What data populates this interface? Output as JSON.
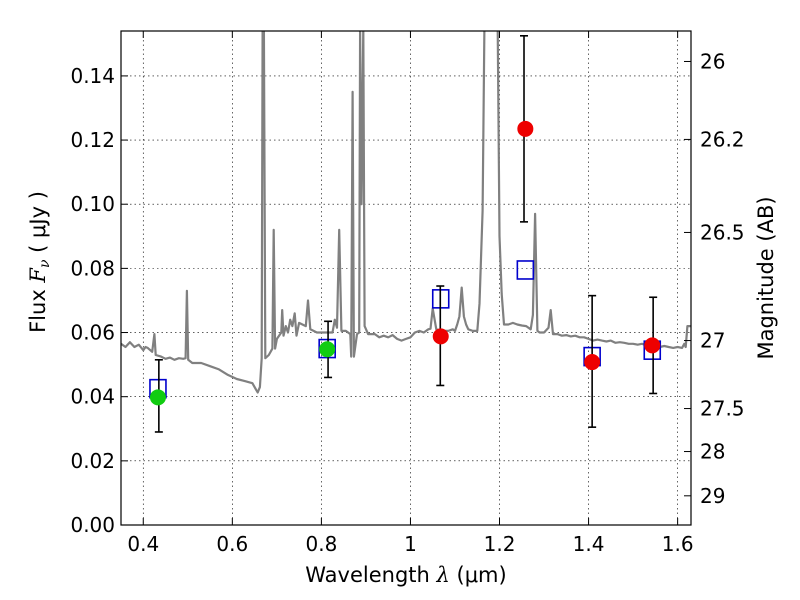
{
  "chart_data": {
    "type": "scatter",
    "xlabel": {
      "prefix": "Wavelength  ",
      "symbol": "λ",
      "units": " (μm)"
    },
    "ylabel": {
      "prefix": "Flux  ",
      "symbol": "F",
      "subscript": "ν",
      "units": "  ( μJy )"
    },
    "y2label": "Magnitude (AB)",
    "xlim": [
      0.35,
      1.63
    ],
    "ylim": [
      0.0,
      0.154
    ],
    "xticks": [
      0.4,
      0.6,
      0.8,
      1.0,
      1.2,
      1.4,
      1.6
    ],
    "xtick_labels": [
      "0.4",
      "0.6",
      "0.8",
      "1",
      "1.2",
      "1.4",
      "1.6"
    ],
    "yticks": [
      0.0,
      0.02,
      0.04,
      0.06,
      0.08,
      0.1,
      0.12,
      0.14
    ],
    "ytick_labels": [
      "0.00",
      "0.02",
      "0.04",
      "0.06",
      "0.08",
      "0.10",
      "0.12",
      "0.14"
    ],
    "y2ticks": [
      {
        "label": "26",
        "flux": 0.1445
      },
      {
        "label": "26.2",
        "flux": 0.1202
      },
      {
        "label": "26.5",
        "flux": 0.0912
      },
      {
        "label": "27",
        "flux": 0.0575
      },
      {
        "label": "27.5",
        "flux": 0.0363
      },
      {
        "label": "28",
        "flux": 0.0229
      },
      {
        "label": "29",
        "flux": 0.0091
      }
    ],
    "grid": true,
    "series": [
      {
        "marker": "line",
        "color": "#808080",
        "points": [
          [
            0.35,
            0.0565
          ],
          [
            0.36,
            0.0555
          ],
          [
            0.37,
            0.057
          ],
          [
            0.38,
            0.0555
          ],
          [
            0.39,
            0.0562
          ],
          [
            0.4,
            0.0545
          ],
          [
            0.405,
            0.0555
          ],
          [
            0.41,
            0.0552
          ],
          [
            0.42,
            0.054
          ],
          [
            0.425,
            0.0595
          ],
          [
            0.428,
            0.053
          ],
          [
            0.44,
            0.0525
          ],
          [
            0.45,
            0.0518
          ],
          [
            0.46,
            0.0522
          ],
          [
            0.47,
            0.0515
          ],
          [
            0.48,
            0.052
          ],
          [
            0.49,
            0.0518
          ],
          [
            0.495,
            0.052
          ],
          [
            0.498,
            0.073
          ],
          [
            0.501,
            0.0515
          ],
          [
            0.51,
            0.0505
          ],
          [
            0.53,
            0.0505
          ],
          [
            0.55,
            0.0495
          ],
          [
            0.57,
            0.0485
          ],
          [
            0.59,
            0.0468
          ],
          [
            0.61,
            0.0455
          ],
          [
            0.63,
            0.0448
          ],
          [
            0.645,
            0.0442
          ],
          [
            0.652,
            0.0425
          ],
          [
            0.657,
            0.0413
          ],
          [
            0.662,
            0.043
          ],
          [
            0.666,
            0.052
          ],
          [
            0.668,
            0.155
          ],
          [
            0.671,
            0.155
          ],
          [
            0.674,
            0.052
          ],
          [
            0.682,
            0.053
          ],
          [
            0.69,
            0.055
          ],
          [
            0.693,
            0.092
          ],
          [
            0.696,
            0.055
          ],
          [
            0.7,
            0.058
          ],
          [
            0.71,
            0.06
          ],
          [
            0.712,
            0.067
          ],
          [
            0.715,
            0.059
          ],
          [
            0.72,
            0.062
          ],
          [
            0.725,
            0.06
          ],
          [
            0.73,
            0.064
          ],
          [
            0.735,
            0.062
          ],
          [
            0.74,
            0.066
          ],
          [
            0.744,
            0.059
          ],
          [
            0.75,
            0.063
          ],
          [
            0.765,
            0.062
          ],
          [
            0.77,
            0.07
          ],
          [
            0.775,
            0.061
          ],
          [
            0.79,
            0.06
          ],
          [
            0.81,
            0.06
          ],
          [
            0.825,
            0.06
          ],
          [
            0.83,
            0.064
          ],
          [
            0.835,
            0.0615
          ],
          [
            0.84,
            0.092
          ],
          [
            0.845,
            0.0605
          ],
          [
            0.855,
            0.0605
          ],
          [
            0.865,
            0.0595
          ],
          [
            0.867,
            0.0525
          ],
          [
            0.87,
            0.135
          ],
          [
            0.873,
            0.0525
          ],
          [
            0.88,
            0.0595
          ],
          [
            0.885,
            0.06
          ],
          [
            0.887,
            0.155
          ],
          [
            0.89,
            0.1
          ],
          [
            0.894,
            0.155
          ],
          [
            0.897,
            0.062
          ],
          [
            0.905,
            0.0595
          ],
          [
            0.92,
            0.0595
          ],
          [
            0.93,
            0.0585
          ],
          [
            0.94,
            0.059
          ],
          [
            0.95,
            0.0585
          ],
          [
            0.96,
            0.0592
          ],
          [
            0.97,
            0.058
          ],
          [
            0.98,
            0.0575
          ],
          [
            0.99,
            0.058
          ],
          [
            1.0,
            0.0585
          ],
          [
            1.01,
            0.06
          ],
          [
            1.02,
            0.0605
          ],
          [
            1.03,
            0.06
          ],
          [
            1.04,
            0.061
          ],
          [
            1.045,
            0.0612
          ],
          [
            1.05,
            0.0675
          ],
          [
            1.058,
            0.061
          ],
          [
            1.07,
            0.0605
          ],
          [
            1.085,
            0.0605
          ],
          [
            1.095,
            0.061
          ],
          [
            1.1,
            0.0605
          ],
          [
            1.105,
            0.0625
          ],
          [
            1.11,
            0.065
          ],
          [
            1.115,
            0.074
          ],
          [
            1.12,
            0.065
          ],
          [
            1.125,
            0.0625
          ],
          [
            1.13,
            0.061
          ],
          [
            1.14,
            0.0605
          ],
          [
            1.15,
            0.0605
          ],
          [
            1.155,
            0.069
          ],
          [
            1.162,
            0.098
          ],
          [
            1.166,
            0.155
          ],
          [
            1.196,
            0.155
          ],
          [
            1.2,
            0.09
          ],
          [
            1.205,
            0.072
          ],
          [
            1.21,
            0.0625
          ],
          [
            1.22,
            0.0625
          ],
          [
            1.23,
            0.063
          ],
          [
            1.24,
            0.0625
          ],
          [
            1.25,
            0.0622
          ],
          [
            1.26,
            0.062
          ],
          [
            1.27,
            0.061
          ],
          [
            1.275,
            0.0655
          ],
          [
            1.28,
            0.097
          ],
          [
            1.285,
            0.0605
          ],
          [
            1.29,
            0.06
          ],
          [
            1.3,
            0.06
          ],
          [
            1.31,
            0.0615
          ],
          [
            1.315,
            0.067
          ],
          [
            1.32,
            0.0595
          ],
          [
            1.33,
            0.0595
          ],
          [
            1.34,
            0.059
          ],
          [
            1.35,
            0.0592
          ],
          [
            1.36,
            0.0588
          ],
          [
            1.37,
            0.059
          ],
          [
            1.38,
            0.0585
          ],
          [
            1.39,
            0.0585
          ],
          [
            1.4,
            0.058
          ],
          [
            1.41,
            0.0575
          ],
          [
            1.42,
            0.0578
          ],
          [
            1.43,
            0.0575
          ],
          [
            1.44,
            0.0572
          ],
          [
            1.45,
            0.0575
          ],
          [
            1.46,
            0.0568
          ],
          [
            1.47,
            0.057
          ],
          [
            1.48,
            0.0568
          ],
          [
            1.49,
            0.0565
          ],
          [
            1.5,
            0.0565
          ],
          [
            1.51,
            0.0562
          ],
          [
            1.52,
            0.0565
          ],
          [
            1.53,
            0.056
          ],
          [
            1.54,
            0.0562
          ],
          [
            1.55,
            0.0558
          ],
          [
            1.56,
            0.0555
          ],
          [
            1.57,
            0.0558
          ],
          [
            1.58,
            0.0555
          ],
          [
            1.59,
            0.0552
          ],
          [
            1.6,
            0.0555
          ],
          [
            1.61,
            0.0552
          ],
          [
            1.615,
            0.0565
          ],
          [
            1.618,
            0.0555
          ],
          [
            1.622,
            0.062
          ],
          [
            1.63,
            0.062
          ]
        ]
      },
      {
        "marker": "open-square",
        "color": "#0000cc",
        "points": [
          [
            0.433,
            0.0425
          ],
          [
            0.813,
            0.055
          ],
          [
            1.068,
            0.0705
          ],
          [
            1.258,
            0.0795
          ],
          [
            1.408,
            0.0525
          ],
          [
            1.543,
            0.0545
          ]
        ]
      },
      {
        "marker": "filled-circle",
        "color": "#11cc11",
        "points": [
          [
            0.433,
            0.0398
          ],
          [
            0.813,
            0.0548
          ]
        ]
      },
      {
        "marker": "filled-circle",
        "color": "#ee0000",
        "points": [
          [
            1.068,
            0.0588
          ],
          [
            1.258,
            0.1235
          ],
          [
            1.408,
            0.0508
          ],
          [
            1.543,
            0.056
          ]
        ]
      },
      {
        "marker": "errorbar",
        "color": "#000000",
        "points": [
          {
            "x": 0.435,
            "lo": 0.029,
            "hi": 0.0515
          },
          {
            "x": 0.815,
            "lo": 0.046,
            "hi": 0.0635
          },
          {
            "x": 1.067,
            "lo": 0.0435,
            "hi": 0.0745
          },
          {
            "x": 1.255,
            "lo": 0.0945,
            "hi": 0.1525
          },
          {
            "x": 1.408,
            "lo": 0.0305,
            "hi": 0.0715
          },
          {
            "x": 1.545,
            "lo": 0.041,
            "hi": 0.071
          }
        ]
      }
    ]
  }
}
